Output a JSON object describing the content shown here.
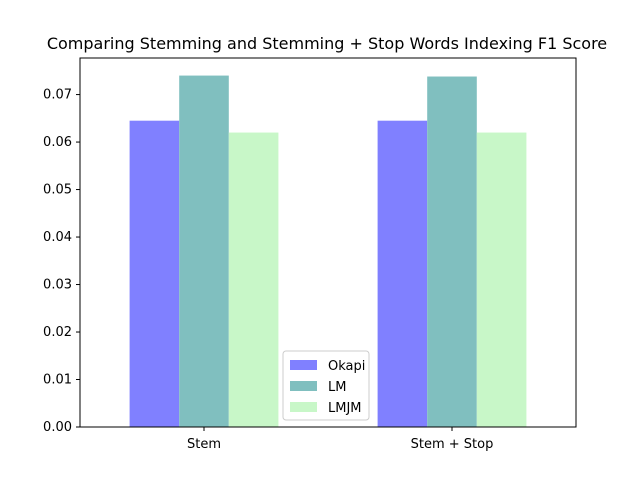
{
  "chart_data": {
    "type": "bar",
    "title": "Comparing Stemming and Stemming + Stop Words Indexing F1 Score",
    "xlabel": "",
    "ylabel": "",
    "categories": [
      "Stem",
      "Stem + Stop"
    ],
    "series": [
      {
        "name": "Okapi",
        "values": [
          0.0645,
          0.0645
        ],
        "color": "#8080ff"
      },
      {
        "name": "LM",
        "values": [
          0.074,
          0.0738
        ],
        "color": "#80bfbf"
      },
      {
        "name": "LMJM",
        "values": [
          0.062,
          0.062
        ],
        "color": "#c8f7c8"
      }
    ],
    "ylim": [
      0,
      0.0777
    ],
    "yticks": [
      0.0,
      0.01,
      0.02,
      0.03,
      0.04,
      0.05,
      0.06,
      0.07
    ],
    "ytick_labels": [
      "0.00",
      "0.01",
      "0.02",
      "0.03",
      "0.04",
      "0.05",
      "0.06",
      "0.07"
    ],
    "grid": false,
    "legend_position": "bottom-center"
  }
}
